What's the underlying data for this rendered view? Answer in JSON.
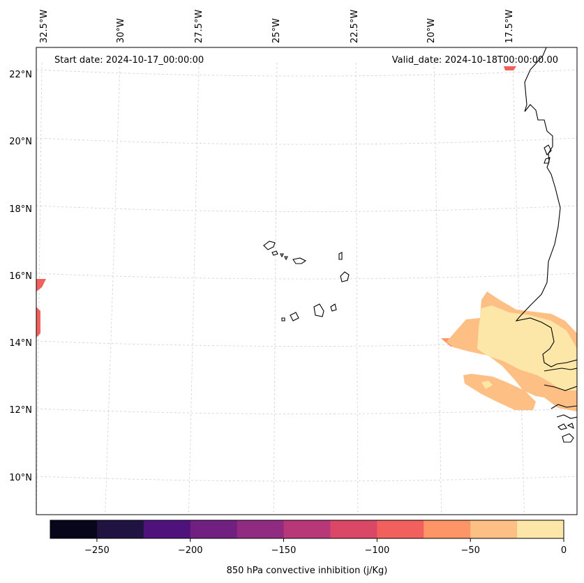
{
  "map": {
    "start_date": "Start date: 2024-10-17_00:00:00",
    "valid_date": "Valid_date: 2024-10-18T00:00:00.00",
    "lon_labels": [
      "32.5°W",
      "30°W",
      "27.5°W",
      "25°W",
      "22.5°W",
      "20°W",
      "17.5°W"
    ],
    "lat_labels": [
      "22°N",
      "20°N",
      "18°N",
      "16°N",
      "14°N",
      "12°N",
      "10°N"
    ]
  },
  "colorbar": {
    "label": "850 hPa convective inhibition (j/Kg)",
    "ticks": [
      "−250",
      "−200",
      "−150",
      "−100",
      "−50",
      "0"
    ],
    "colors": [
      "#07061a",
      "#201341",
      "#4f117b",
      "#711f81",
      "#912b81",
      "#b73779",
      "#db4867",
      "#f1605d",
      "#fd9567",
      "#febf84",
      "#fce7a8"
    ]
  }
}
